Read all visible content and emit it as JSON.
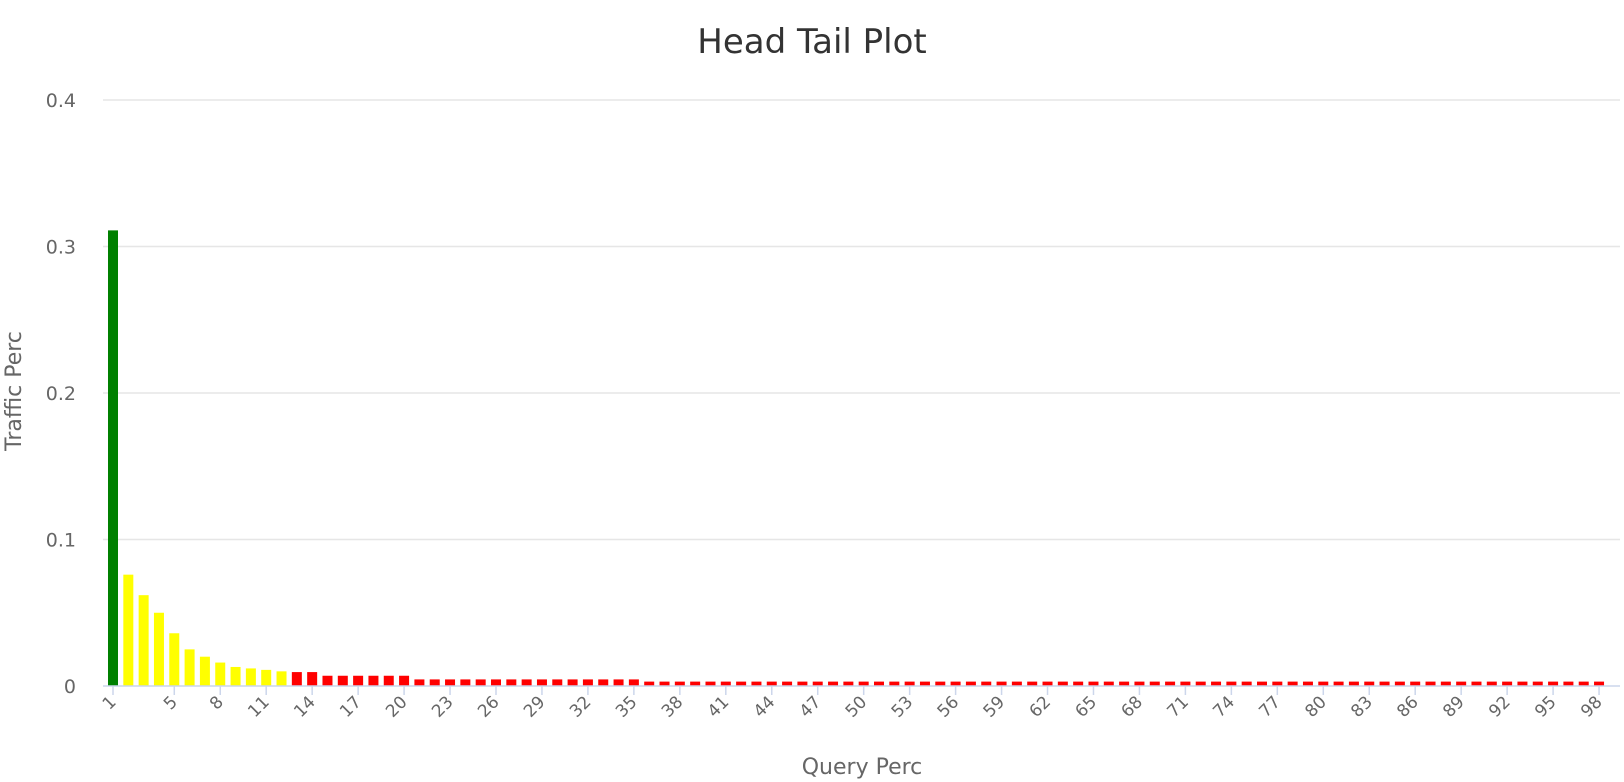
{
  "chart_data": {
    "type": "bar",
    "title": "Head Tail Plot",
    "xlabel": "Query Perc",
    "ylabel": "Traffic Perc",
    "ylim": [
      0,
      0.4
    ],
    "yticks": [
      "0",
      "0.1",
      "0.2",
      "0.3",
      "0.4"
    ],
    "ytick_values": [
      0,
      0.1,
      0.2,
      0.3,
      0.4
    ],
    "grid": true,
    "legend": "none",
    "xtick_labels": [
      "1",
      "5",
      "8",
      "11",
      "14",
      "17",
      "20",
      "23",
      "26",
      "29",
      "32",
      "35",
      "38",
      "41",
      "44",
      "47",
      "50",
      "53",
      "56",
      "59",
      "62",
      "65",
      "68",
      "71",
      "74",
      "77",
      "80",
      "83",
      "86",
      "89",
      "92",
      "95",
      "98"
    ],
    "categories": [
      1,
      2,
      3,
      4,
      5,
      6,
      7,
      8,
      9,
      10,
      11,
      12,
      13,
      14,
      15,
      16,
      17,
      18,
      19,
      20,
      21,
      22,
      23,
      24,
      25,
      26,
      27,
      28,
      29,
      30,
      31,
      32,
      33,
      34,
      35,
      36,
      37,
      38,
      39,
      40,
      41,
      42,
      43,
      44,
      45,
      46,
      47,
      48,
      49,
      50,
      51,
      52,
      53,
      54,
      55,
      56,
      57,
      58,
      59,
      60,
      61,
      62,
      63,
      64,
      65,
      66,
      67,
      68,
      69,
      70,
      71,
      72,
      73,
      74,
      75,
      76,
      77,
      78,
      79,
      80,
      81,
      82,
      83,
      84,
      85,
      86,
      87,
      88,
      89,
      90,
      91,
      92,
      93,
      94,
      95,
      96,
      97,
      98
    ],
    "values": [
      0.311,
      0.076,
      0.062,
      0.05,
      0.036,
      0.025,
      0.02,
      0.016,
      0.013,
      0.012,
      0.011,
      0.01,
      0.0095,
      0.0095,
      0.007,
      0.007,
      0.007,
      0.007,
      0.007,
      0.007,
      0.0045,
      0.0045,
      0.0045,
      0.0045,
      0.0045,
      0.0045,
      0.0045,
      0.0045,
      0.0045,
      0.0045,
      0.0045,
      0.0045,
      0.0045,
      0.0045,
      0.0045,
      0.003,
      0.003,
      0.003,
      0.003,
      0.003,
      0.003,
      0.003,
      0.003,
      0.003,
      0.003,
      0.003,
      0.003,
      0.003,
      0.003,
      0.003,
      0.003,
      0.003,
      0.003,
      0.003,
      0.003,
      0.003,
      0.003,
      0.003,
      0.003,
      0.003,
      0.003,
      0.003,
      0.003,
      0.003,
      0.003,
      0.003,
      0.003,
      0.003,
      0.003,
      0.003,
      0.003,
      0.003,
      0.003,
      0.003,
      0.003,
      0.003,
      0.003,
      0.003,
      0.003,
      0.003,
      0.003,
      0.003,
      0.003,
      0.003,
      0.003,
      0.003,
      0.003,
      0.003,
      0.003,
      0.003,
      0.003,
      0.003,
      0.003,
      0.003,
      0.003,
      0.003,
      0.003,
      0.003
    ],
    "colors": {
      "head": "#008000",
      "torso": "#ffff00",
      "tail": "#ff0000"
    },
    "segments": {
      "head_count": 1,
      "torso_count": 11
    }
  }
}
